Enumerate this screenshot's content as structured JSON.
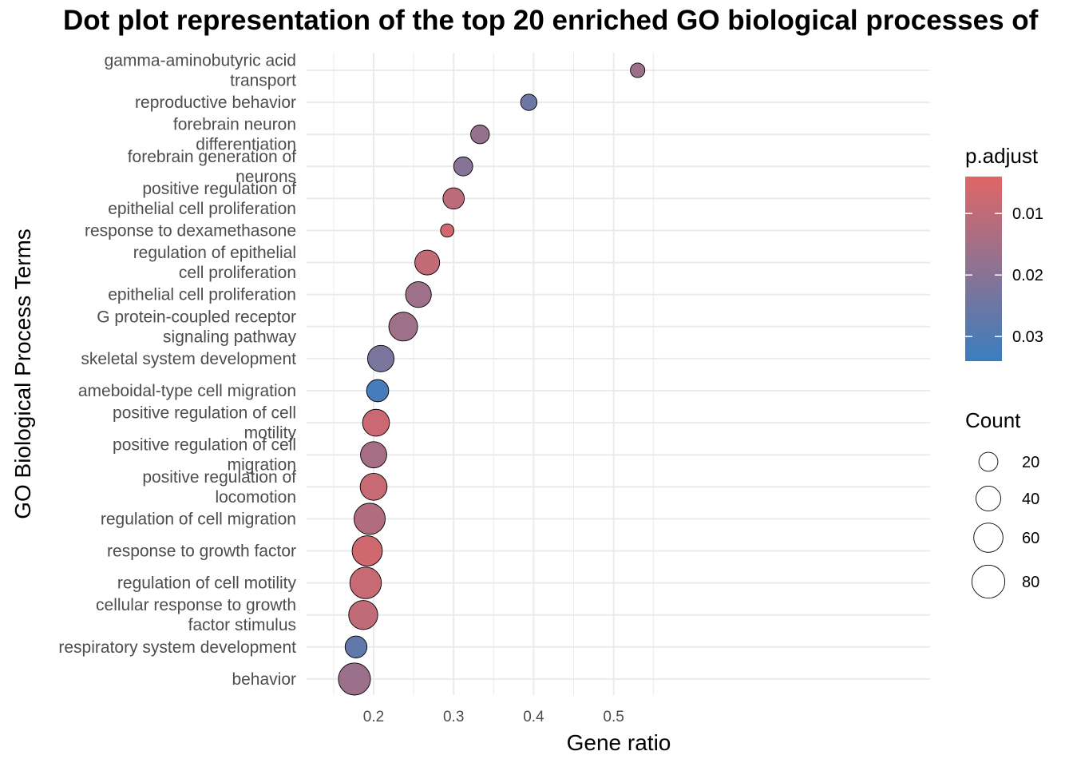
{
  "chart_data": {
    "type": "scatter",
    "title": "Dot plot representation of the top 20 enriched GO biological processes of",
    "xlabel": "Gene ratio",
    "ylabel": "GO Biological Process Terms",
    "xlim": [
      0.16,
      0.55
    ],
    "xticks": [
      0.2,
      0.3,
      0.4,
      0.5
    ],
    "xtick_labels": [
      "0.2",
      "0.3",
      "0.4",
      "0.5"
    ],
    "grid": true,
    "legend_position": "right",
    "colors": {
      "low_p": "#e06666",
      "high_p": "#3a7ebf",
      "grid": "#ebebeb"
    },
    "color_legend": {
      "title": "p.adjust",
      "range": [
        0.004,
        0.034
      ],
      "ticks": [
        0.01,
        0.02,
        0.03
      ],
      "tick_labels": [
        "0.01",
        "0.02",
        "0.03"
      ]
    },
    "size_legend": {
      "title": "Count",
      "values": [
        20,
        40,
        60,
        80
      ],
      "labels": [
        "20",
        "40",
        "60",
        "80"
      ]
    },
    "terms": [
      {
        "label": [
          "gamma-aminobutyric acid",
          "transport"
        ],
        "gene_ratio": 0.53,
        "p_adjust": 0.0165,
        "count": 9
      },
      {
        "label": [
          "reproductive behavior"
        ],
        "gene_ratio": 0.394,
        "p_adjust": 0.025,
        "count": 13
      },
      {
        "label": [
          "forebrain neuron",
          "differentiation"
        ],
        "gene_ratio": 0.333,
        "p_adjust": 0.0175,
        "count": 19
      },
      {
        "label": [
          "forebrain generation of",
          "neurons"
        ],
        "gene_ratio": 0.312,
        "p_adjust": 0.02,
        "count": 20
      },
      {
        "label": [
          "positive regulation of",
          "epithelial cell proliferation"
        ],
        "gene_ratio": 0.3,
        "p_adjust": 0.0105,
        "count": 27
      },
      {
        "label": [
          "response to dexamethasone"
        ],
        "gene_ratio": 0.292,
        "p_adjust": 0.0065,
        "count": 7
      },
      {
        "label": [
          "regulation of epithelial",
          "cell proliferation"
        ],
        "gene_ratio": 0.267,
        "p_adjust": 0.0095,
        "count": 40
      },
      {
        "label": [
          "epithelial cell proliferation"
        ],
        "gene_ratio": 0.256,
        "p_adjust": 0.016,
        "count": 44
      },
      {
        "label": [
          "G protein-coupled receptor",
          "signaling pathway"
        ],
        "gene_ratio": 0.237,
        "p_adjust": 0.016,
        "count": 58
      },
      {
        "label": [
          "skeletal system development"
        ],
        "gene_ratio": 0.209,
        "p_adjust": 0.0225,
        "count": 47
      },
      {
        "label": [
          "ameboidal-type cell migration"
        ],
        "gene_ratio": 0.205,
        "p_adjust": 0.032,
        "count": 30
      },
      {
        "label": [
          "positive regulation of cell",
          "motility"
        ],
        "gene_ratio": 0.203,
        "p_adjust": 0.008,
        "count": 49
      },
      {
        "label": [
          "positive regulation of cell",
          "migration"
        ],
        "gene_ratio": 0.2,
        "p_adjust": 0.0145,
        "count": 46
      },
      {
        "label": [
          "positive regulation of",
          "locomotion"
        ],
        "gene_ratio": 0.2,
        "p_adjust": 0.0085,
        "count": 49
      },
      {
        "label": [
          "regulation of cell migration"
        ],
        "gene_ratio": 0.195,
        "p_adjust": 0.0125,
        "count": 70
      },
      {
        "label": [
          "response to growth factor"
        ],
        "gene_ratio": 0.192,
        "p_adjust": 0.007,
        "count": 65
      },
      {
        "label": [
          "regulation of cell motility"
        ],
        "gene_ratio": 0.19,
        "p_adjust": 0.0085,
        "count": 72
      },
      {
        "label": [
          "cellular response to growth",
          "factor stimulus"
        ],
        "gene_ratio": 0.187,
        "p_adjust": 0.01,
        "count": 59
      },
      {
        "label": [
          "respiratory system development"
        ],
        "gene_ratio": 0.178,
        "p_adjust": 0.027,
        "count": 29
      },
      {
        "label": [
          "behavior"
        ],
        "gene_ratio": 0.176,
        "p_adjust": 0.0165,
        "count": 75
      }
    ]
  }
}
